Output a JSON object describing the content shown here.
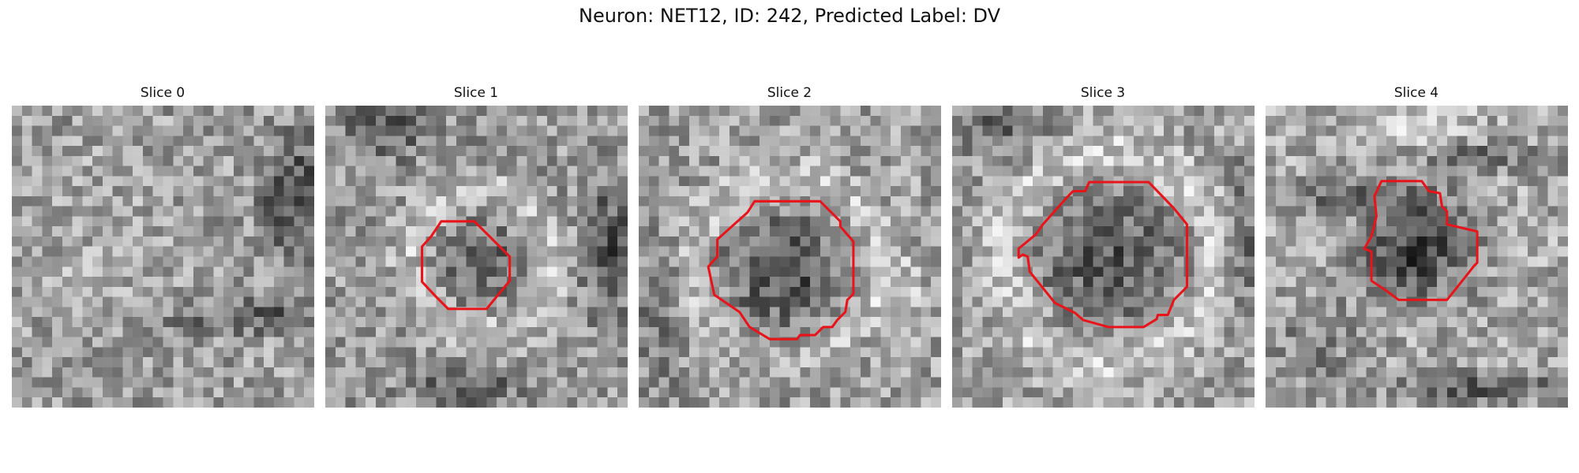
{
  "figure": {
    "title": "Neuron: NET12, ID: 242, Predicted Label: DV"
  },
  "panels": [
    {
      "title": "Slice 0",
      "has_contour": false
    },
    {
      "title": "Slice 1",
      "has_contour": true
    },
    {
      "title": "Slice 2",
      "has_contour": true
    },
    {
      "title": "Slice 3",
      "has_contour": true
    },
    {
      "title": "Slice 4",
      "has_contour": true
    }
  ],
  "colors": {
    "contour": "#e8141a",
    "background": "#ffffff"
  }
}
